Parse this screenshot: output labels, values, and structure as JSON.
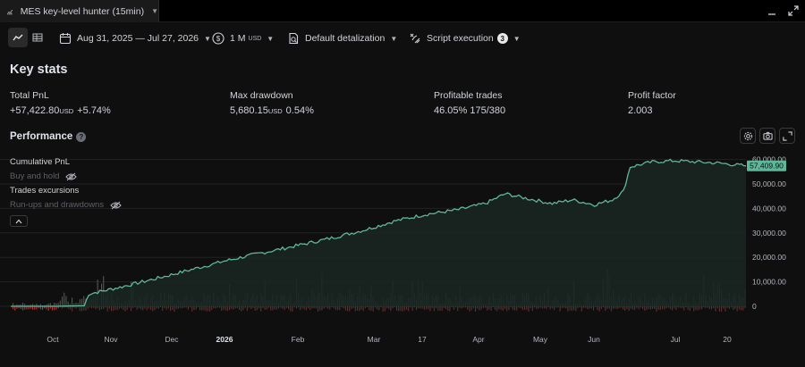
{
  "window": {
    "tab_title": "MES key-level hunter (15min)"
  },
  "toolbar": {
    "date_range": "Aug 31, 2025 — Jul 27, 2026",
    "capital": "1 M",
    "capital_unit": "USD",
    "detalization": "Default detalization",
    "script_execution": "Script execution",
    "script_execution_count": "3"
  },
  "key_stats": {
    "title": "Key stats",
    "total_pnl": {
      "label": "Total PnL",
      "value": "+57,422.80",
      "unit": "USD",
      "percent": "+5.74%"
    },
    "max_drawdown": {
      "label": "Max drawdown",
      "value": "5,680.15",
      "unit": "USD",
      "percent": "0.54%"
    },
    "profitable_trades": {
      "label": "Profitable trades",
      "percent": "46.05%",
      "ratio": "175/380"
    },
    "profit_factor": {
      "label": "Profit factor",
      "value": "2.003"
    }
  },
  "performance": {
    "title": "Performance",
    "legend": {
      "cumulative_pnl": "Cumulative PnL",
      "buy_and_hold": "Buy and hold",
      "trades_excursions": "Trades excursions",
      "runups_drawdowns": "Run-ups and drawdowns"
    }
  },
  "colors": {
    "pnl_line": "#5fb79a",
    "runup_bar": "#4c5a54",
    "drawdown_bar": "#b23a3a",
    "last_value_tag": "#5fb79a"
  },
  "chart_data": {
    "type": "line",
    "series": [
      {
        "name": "Cumulative PnL",
        "x": [
          "2025-08-31",
          "2025-09-20",
          "2025-10-03",
          "2025-10-05",
          "2025-10-20",
          "2025-11-05",
          "2025-11-20",
          "2025-12-05",
          "2025-12-20",
          "2026-01-05",
          "2026-01-20",
          "2026-02-05",
          "2026-02-20",
          "2026-03-05",
          "2026-03-20",
          "2026-04-01",
          "2026-04-10",
          "2026-04-20",
          "2026-05-01",
          "2026-05-10",
          "2026-05-20",
          "2026-05-28",
          "2026-06-02",
          "2026-06-05",
          "2026-06-15",
          "2026-06-25",
          "2026-07-05",
          "2026-07-15",
          "2026-07-27"
        ],
        "values": [
          0,
          0,
          200,
          5000,
          8000,
          11500,
          15000,
          18500,
          21500,
          24500,
          27500,
          31000,
          35000,
          37500,
          39500,
          42000,
          46000,
          44000,
          42000,
          43500,
          41500,
          43500,
          47000,
          57000,
          59000,
          59500,
          59000,
          58500,
          57410
        ]
      }
    ],
    "last_value_label": "57,409.90",
    "y_tick_labels": [
      "60,000.00",
      "50,000.00",
      "40,000.00",
      "30,000.00",
      "20,000.00",
      "10,000.00",
      "0"
    ],
    "x_tick_labels": [
      "Oct",
      "Nov",
      "Dec",
      "2026",
      "Feb",
      "Mar",
      "17",
      "Apr",
      "May",
      "Jun",
      "Jul",
      "20"
    ],
    "ylim": [
      -2000,
      61000
    ],
    "grid": true,
    "legend_position": "top-left"
  }
}
